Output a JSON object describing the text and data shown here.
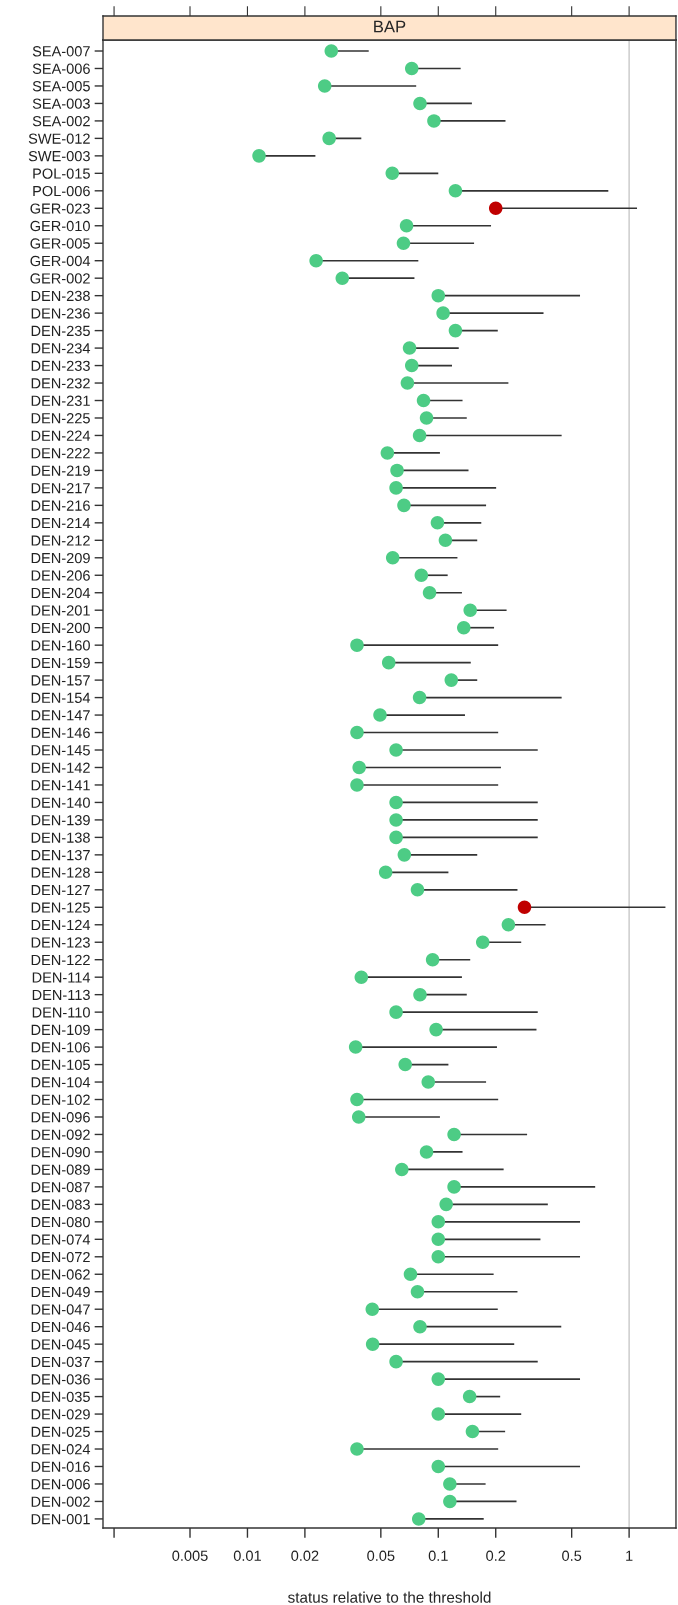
{
  "chart_data": {
    "type": "scatter",
    "title": "BAP",
    "xlabel": "status relative to the threshold",
    "orientation": "horizontal",
    "log": "x",
    "marker": "circle",
    "categories": [
      "SEA-007",
      "SEA-006",
      "SEA-005",
      "SEA-003",
      "SEA-002",
      "SWE-012",
      "SWE-003",
      "POL-015",
      "POL-006",
      "GER-023",
      "GER-010",
      "GER-005",
      "GER-004",
      "GER-002",
      "DEN-238",
      "DEN-236",
      "DEN-235",
      "DEN-234",
      "DEN-233",
      "DEN-232",
      "DEN-231",
      "DEN-225",
      "DEN-224",
      "DEN-222",
      "DEN-219",
      "DEN-217",
      "DEN-216",
      "DEN-214",
      "DEN-212",
      "DEN-209",
      "DEN-206",
      "DEN-204",
      "DEN-201",
      "DEN-200",
      "DEN-160",
      "DEN-159",
      "DEN-157",
      "DEN-154",
      "DEN-147",
      "DEN-146",
      "DEN-145",
      "DEN-142",
      "DEN-141",
      "DEN-140",
      "DEN-139",
      "DEN-138",
      "DEN-137",
      "DEN-128",
      "DEN-127",
      "DEN-125",
      "DEN-124",
      "DEN-123",
      "DEN-122",
      "DEN-114",
      "DEN-113",
      "DEN-110",
      "DEN-109",
      "DEN-106",
      "DEN-105",
      "DEN-104",
      "DEN-102",
      "DEN-096",
      "DEN-092",
      "DEN-090",
      "DEN-089",
      "DEN-087",
      "DEN-083",
      "DEN-080",
      "DEN-074",
      "DEN-072",
      "DEN-062",
      "DEN-049",
      "DEN-047",
      "DEN-046",
      "DEN-045",
      "DEN-037",
      "DEN-036",
      "DEN-035",
      "DEN-029",
      "DEN-025",
      "DEN-024",
      "DEN-016",
      "DEN-006",
      "DEN-002",
      "DEN-001"
    ],
    "values": [
      0.0275,
      0.0726,
      0.0254,
      0.0802,
      0.0949,
      0.0268,
      0.0115,
      0.0574,
      0.123,
      0.2,
      0.0682,
      0.0657,
      0.0229,
      0.0314,
      0.1,
      0.106,
      0.123,
      0.0707,
      0.0726,
      0.0689,
      0.0837,
      0.0868,
      0.0798,
      0.0541,
      0.0608,
      0.0601,
      0.0661,
      0.099,
      0.109,
      0.0577,
      0.0815,
      0.09,
      0.147,
      0.136,
      0.0375,
      0.055,
      0.117,
      0.0798,
      0.0495,
      0.0375,
      0.0601,
      0.0385,
      0.0375,
      0.0601,
      0.0601,
      0.0601,
      0.0664,
      0.053,
      0.0778,
      0.283,
      0.233,
      0.171,
      0.0934,
      0.0395,
      0.0802,
      0.0601,
      0.0974,
      0.0369,
      0.0671,
      0.0886,
      0.0375,
      0.0383,
      0.121,
      0.0868,
      0.0644,
      0.121,
      0.11,
      0.1,
      0.1,
      0.1,
      0.0715,
      0.0778,
      0.0451,
      0.0802,
      0.0453,
      0.0601,
      0.1,
      0.146,
      0.1,
      0.151,
      0.0375,
      0.1,
      0.115,
      0.115,
      0.079
    ],
    "errors": [
      [
        0.0275,
        0.0432
      ],
      [
        0.0726,
        0.131
      ],
      [
        0.0254,
        0.0766
      ],
      [
        0.0802,
        0.15
      ],
      [
        0.0949,
        0.225
      ],
      [
        0.0268,
        0.0395
      ],
      [
        0.0115,
        0.0227
      ],
      [
        0.0574,
        0.1
      ],
      [
        0.123,
        0.778
      ],
      [
        0.2,
        1.1
      ],
      [
        0.0682,
        0.189
      ],
      [
        0.0657,
        0.154
      ],
      [
        0.0229,
        0.0786
      ],
      [
        0.0314,
        0.075
      ],
      [
        0.1,
        0.553
      ],
      [
        0.106,
        0.356
      ],
      [
        0.123,
        0.205
      ],
      [
        0.0707,
        0.128
      ],
      [
        0.0726,
        0.118
      ],
      [
        0.0689,
        0.233
      ],
      [
        0.0837,
        0.134
      ],
      [
        0.0868,
        0.141
      ],
      [
        0.0798,
        0.443
      ],
      [
        0.0541,
        0.102
      ],
      [
        0.0608,
        0.144
      ],
      [
        0.0601,
        0.201
      ],
      [
        0.0661,
        0.178
      ],
      [
        0.099,
        0.168
      ],
      [
        0.109,
        0.16
      ],
      [
        0.0577,
        0.126
      ],
      [
        0.0815,
        0.112
      ],
      [
        0.09,
        0.133
      ],
      [
        0.147,
        0.228
      ],
      [
        0.136,
        0.196
      ],
      [
        0.0375,
        0.206
      ],
      [
        0.055,
        0.148
      ],
      [
        0.117,
        0.16
      ],
      [
        0.0798,
        0.443
      ],
      [
        0.0495,
        0.138
      ],
      [
        0.0375,
        0.206
      ],
      [
        0.0601,
        0.332
      ],
      [
        0.0385,
        0.213
      ],
      [
        0.0375,
        0.206
      ],
      [
        0.0601,
        0.332
      ],
      [
        0.0601,
        0.332
      ],
      [
        0.0601,
        0.332
      ],
      [
        0.0664,
        0.16
      ],
      [
        0.053,
        0.113
      ],
      [
        0.0778,
        0.26
      ],
      [
        0.283,
        1.55
      ],
      [
        0.233,
        0.365
      ],
      [
        0.171,
        0.272
      ],
      [
        0.0934,
        0.147
      ],
      [
        0.0395,
        0.133
      ],
      [
        0.0802,
        0.141
      ],
      [
        0.0601,
        0.332
      ],
      [
        0.0974,
        0.327
      ],
      [
        0.0369,
        0.203
      ],
      [
        0.0671,
        0.113
      ],
      [
        0.0886,
        0.178
      ],
      [
        0.0375,
        0.206
      ],
      [
        0.0383,
        0.102
      ],
      [
        0.121,
        0.292
      ],
      [
        0.0868,
        0.134
      ],
      [
        0.0644,
        0.22
      ],
      [
        0.121,
        0.664
      ],
      [
        0.11,
        0.375
      ],
      [
        0.1,
        0.553
      ],
      [
        0.1,
        0.343
      ],
      [
        0.1,
        0.553
      ],
      [
        0.0715,
        0.195
      ],
      [
        0.0778,
        0.26
      ],
      [
        0.0451,
        0.205
      ],
      [
        0.0802,
        0.441
      ],
      [
        0.0453,
        0.25
      ],
      [
        0.0601,
        0.332
      ],
      [
        0.1,
        0.553
      ],
      [
        0.146,
        0.211
      ],
      [
        0.1,
        0.272
      ],
      [
        0.151,
        0.224
      ],
      [
        0.0375,
        0.206
      ],
      [
        0.1,
        0.553
      ],
      [
        0.115,
        0.177
      ],
      [
        0.115,
        0.257
      ],
      [
        0.079,
        0.173
      ]
    ],
    "colors": [
      "#4dcc85",
      "#4dcc85",
      "#4dcc85",
      "#4dcc85",
      "#4dcc85",
      "#4dcc85",
      "#4dcc85",
      "#4dcc85",
      "#4dcc85",
      "#c00000",
      "#4dcc85",
      "#4dcc85",
      "#4dcc85",
      "#4dcc85",
      "#4dcc85",
      "#4dcc85",
      "#4dcc85",
      "#4dcc85",
      "#4dcc85",
      "#4dcc85",
      "#4dcc85",
      "#4dcc85",
      "#4dcc85",
      "#4dcc85",
      "#4dcc85",
      "#4dcc85",
      "#4dcc85",
      "#4dcc85",
      "#4dcc85",
      "#4dcc85",
      "#4dcc85",
      "#4dcc85",
      "#4dcc85",
      "#4dcc85",
      "#4dcc85",
      "#4dcc85",
      "#4dcc85",
      "#4dcc85",
      "#4dcc85",
      "#4dcc85",
      "#4dcc85",
      "#4dcc85",
      "#4dcc85",
      "#4dcc85",
      "#4dcc85",
      "#4dcc85",
      "#4dcc85",
      "#4dcc85",
      "#4dcc85",
      "#c00000",
      "#4dcc85",
      "#4dcc85",
      "#4dcc85",
      "#4dcc85",
      "#4dcc85",
      "#4dcc85",
      "#4dcc85",
      "#4dcc85",
      "#4dcc85",
      "#4dcc85",
      "#4dcc85",
      "#4dcc85",
      "#4dcc85",
      "#4dcc85",
      "#4dcc85",
      "#4dcc85",
      "#4dcc85",
      "#4dcc85",
      "#4dcc85",
      "#4dcc85",
      "#4dcc85",
      "#4dcc85",
      "#4dcc85",
      "#4dcc85",
      "#4dcc85",
      "#4dcc85",
      "#4dcc85",
      "#4dcc85",
      "#4dcc85",
      "#4dcc85",
      "#4dcc85",
      "#4dcc85",
      "#4dcc85",
      "#4dcc85",
      "#4dcc85"
    ],
    "xlim": [
      0.00175,
      1.76
    ],
    "xticks": [
      {
        "value": 0.002,
        "label": null
      },
      0.005,
      0.01,
      0.02,
      0.05,
      0.1,
      0.2,
      0.5,
      1
    ],
    "ref_lines": [
      {
        "axis": "x",
        "value": 1,
        "color": "#c8c8c8"
      }
    ]
  }
}
